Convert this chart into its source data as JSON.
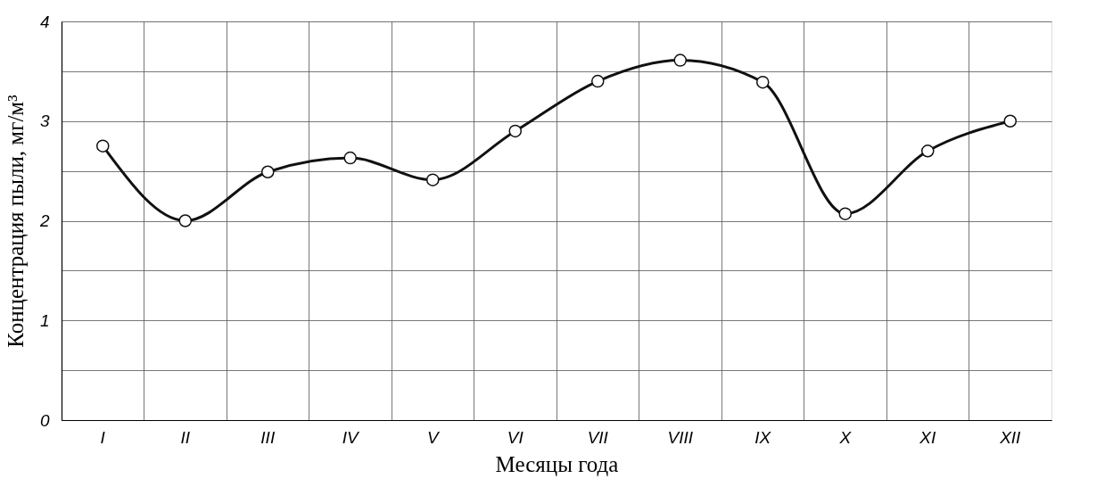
{
  "chart_data": {
    "type": "line",
    "xlabel": "Месяцы года",
    "ylabel": "Концентрация пыли, мг/м³",
    "categories": [
      "I",
      "II",
      "III",
      "IV",
      "V",
      "VI",
      "VII",
      "VIII",
      "IX",
      "X",
      "XI",
      "XII"
    ],
    "series": [
      {
        "color": "#111111",
        "values": [
          2.75,
          2.0,
          2.49,
          2.63,
          2.41,
          2.9,
          3.4,
          3.61,
          3.39,
          2.07,
          2.7,
          3.0
        ]
      }
    ],
    "ylim": [
      0,
      4
    ],
    "yticks": [
      0,
      {
        "value": 0.5,
        "label": null
      },
      1,
      {
        "value": 1.5,
        "label": null
      },
      2,
      {
        "value": 2.5,
        "label": null
      },
      3,
      {
        "value": 3.5,
        "label": null
      },
      4
    ],
    "grid": true,
    "marker": "circle",
    "line_style": "solid"
  }
}
